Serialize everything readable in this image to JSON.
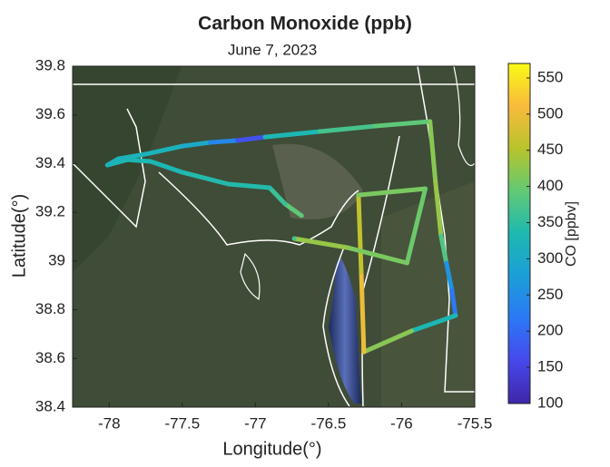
{
  "chart_data": {
    "type": "track",
    "title": "Carbon Monoxide (ppb)",
    "subtitle": "June 7, 2023",
    "x_label": "Longitude(°)",
    "y_label": "Latitude(°)",
    "colorbar_label": "CO [ppbv]",
    "colormap": "parula",
    "xlim": [
      -78.25,
      -75.5
    ],
    "ylim": [
      38.4,
      39.8
    ],
    "clim": [
      100,
      570
    ],
    "xticks": [
      -78,
      -77.5,
      -77,
      -76.5,
      -76,
      -75.5
    ],
    "yticks": [
      38.4,
      38.6,
      38.8,
      39,
      39.2,
      39.4,
      39.6,
      39.8
    ],
    "cticks": [
      100,
      150,
      200,
      250,
      300,
      350,
      400,
      450,
      500,
      550
    ],
    "x": [
      -76.684,
      -76.796,
      -76.903,
      -77.185,
      -77.498,
      -77.717,
      -77.874,
      -78.012,
      -77.937,
      -77.749,
      -77.498,
      -77.31,
      -77.122,
      -76.934,
      -76.558,
      -76.182,
      -75.806,
      -75.769,
      -75.731,
      -75.694,
      -75.656,
      -75.631,
      -75.932,
      -76.258,
      -76.276,
      -76.295,
      -75.838,
      -75.963,
      -76.37,
      -76.734
    ],
    "y": [
      39.186,
      39.234,
      39.301,
      39.316,
      39.364,
      39.409,
      39.416,
      39.394,
      39.42,
      39.439,
      39.472,
      39.487,
      39.495,
      39.509,
      39.532,
      39.554,
      39.573,
      39.327,
      39.104,
      38.992,
      38.88,
      38.776,
      38.713,
      38.627,
      38.955,
      39.271,
      39.297,
      38.992,
      39.055,
      39.092
    ],
    "values": [
      390,
      360,
      340,
      340,
      330,
      330,
      330,
      320,
      320,
      320,
      300,
      240,
      170,
      330,
      370,
      390,
      420,
      430,
      380,
      260,
      220,
      330,
      420,
      500,
      460,
      410,
      400,
      410,
      430,
      370
    ]
  }
}
